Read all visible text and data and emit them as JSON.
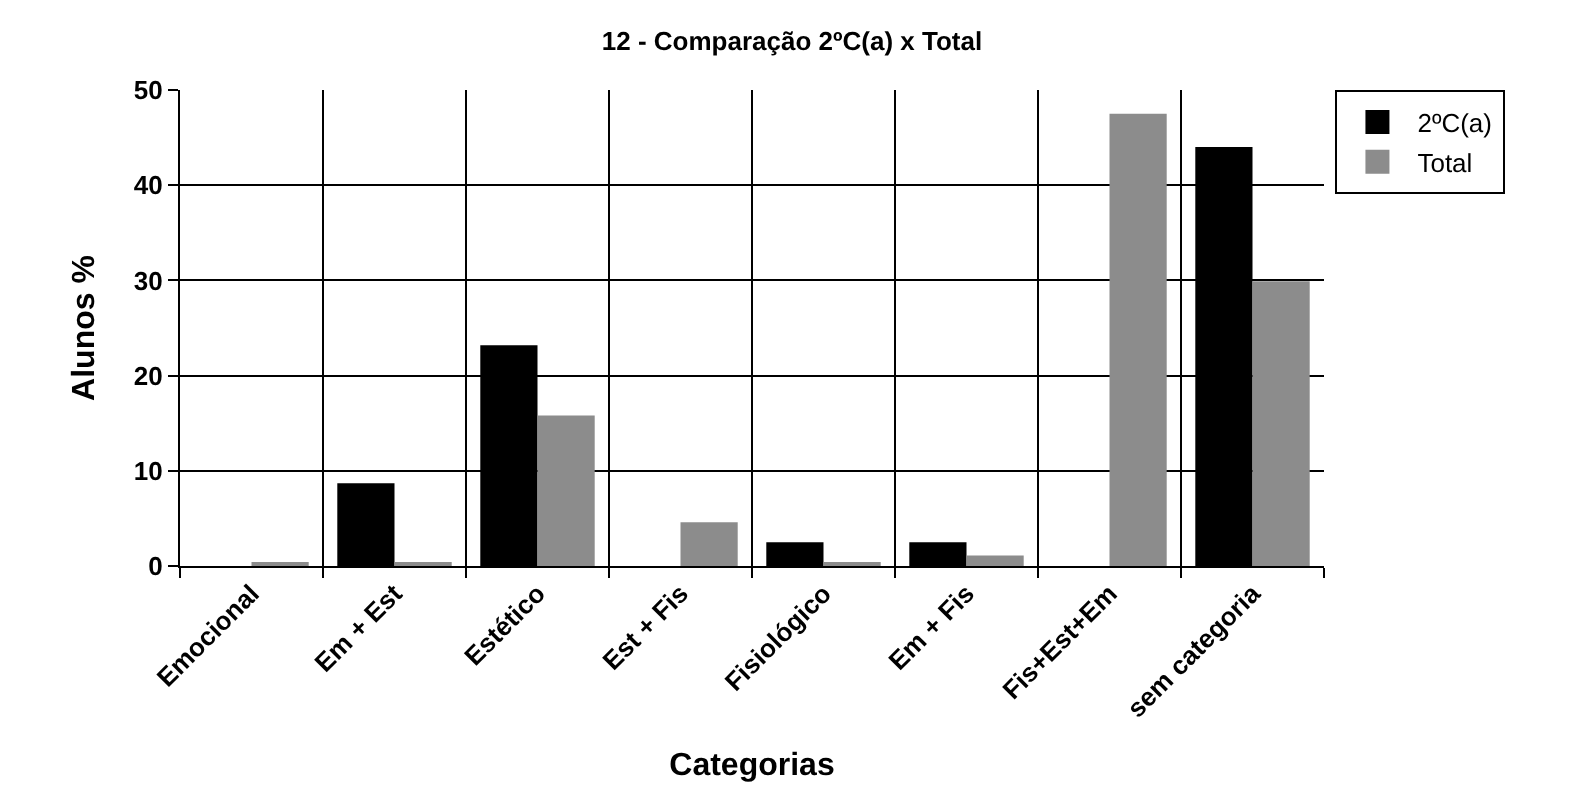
{
  "chart_data": {
    "type": "bar",
    "title": "12 - Comparação 2ºC(a) x Total",
    "xlabel": "Categorias",
    "ylabel": "Alunos %",
    "categories": [
      "Emocional",
      "Em + Est",
      "Estético",
      "Est + Fis",
      "Fisiológico",
      "Em + Fis",
      "Fis+Est+Em",
      "sem categoria"
    ],
    "series": [
      {
        "name": "2ºC(a)",
        "color": "#000000",
        "values": [
          0,
          8.7,
          23.2,
          0,
          2.5,
          2.5,
          0,
          44
        ]
      },
      {
        "name": "Total",
        "color": "#8c8c8c",
        "values": [
          0.3,
          0.3,
          15.8,
          4.6,
          0.3,
          1.1,
          47.5,
          29.9
        ]
      }
    ],
    "ylim": [
      0,
      50
    ],
    "yticks": [
      0,
      10,
      20,
      30,
      40,
      50
    ],
    "grid": true,
    "legend": "top right"
  }
}
